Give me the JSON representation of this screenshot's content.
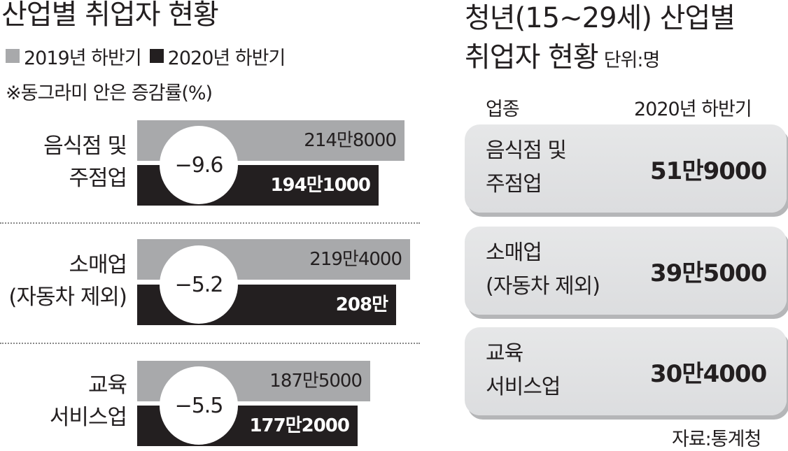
{
  "left": {
    "title": "산업별 취업자 현황",
    "legend": [
      {
        "label": "2019년 하반기",
        "color": "#a8a9ab"
      },
      {
        "label": "2020년 하반기",
        "color": "#231f20"
      }
    ],
    "note": "※동그라미 안은 증감률(%)"
  },
  "right": {
    "title_line1": "청년(15~29세) 산업별",
    "title_line2": "취업자 현황",
    "unit": "단위:명",
    "col_industry": "업종",
    "col_value": "2020년 하반기",
    "rows": [
      {
        "name_line1": "음식점 및",
        "name_line2": "주점업",
        "value": "51만9000"
      },
      {
        "name_line1": "소매업",
        "name_line2": "(자동차 제외)",
        "value": "39만5000"
      },
      {
        "name_line1": "교육",
        "name_line2": "서비스업",
        "value": "30만4000"
      }
    ]
  },
  "source": "자료:통계청",
  "chart_data": [
    {
      "type": "bar",
      "title": "산업별 취업자 현황",
      "categories": [
        "음식점 및 주점업",
        "소매업 (자동차 제외)",
        "교육 서비스업"
      ],
      "category_lines": [
        [
          "음식점 및",
          "주점업"
        ],
        [
          "소매업",
          "(자동차 제외)"
        ],
        [
          "교육",
          "서비스업"
        ]
      ],
      "series": [
        {
          "name": "2019년 하반기",
          "values": [
            2148000,
            2194000,
            1875000
          ],
          "labels": [
            "214만8000",
            "219만4000",
            "187만5000"
          ]
        },
        {
          "name": "2020년 하반기",
          "values": [
            1941000,
            2080000,
            1772000
          ],
          "labels": [
            "194만1000",
            "208만",
            "177만2000"
          ]
        }
      ],
      "change_pct": [
        "−9.6",
        "−5.2",
        "−5.5"
      ],
      "orientation": "horizontal"
    },
    {
      "type": "table",
      "title": "청년(15~29세) 산업별 취업자 현황",
      "columns": [
        "업종",
        "2020년 하반기"
      ],
      "rows": [
        [
          "음식점 및 주점업",
          "51만9000"
        ],
        [
          "소매업 (자동차 제외)",
          "39만5000"
        ],
        [
          "교육 서비스업",
          "30만4000"
        ]
      ]
    }
  ]
}
